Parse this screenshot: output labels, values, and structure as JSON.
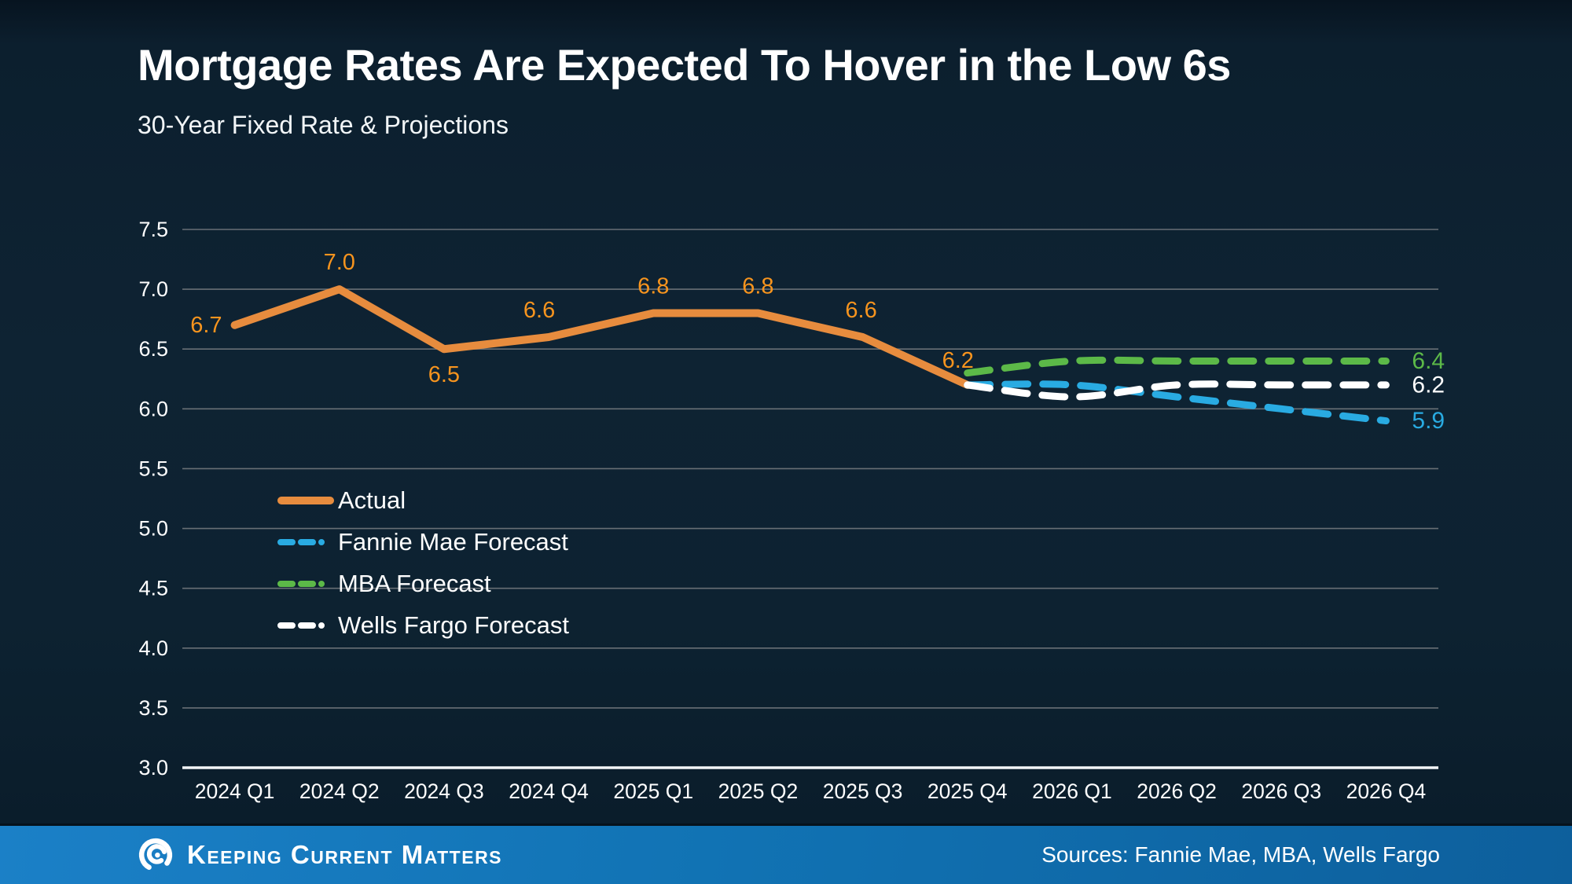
{
  "header": {
    "title": "Mortgage Rates Are Expected To Hover in the Low 6s",
    "subtitle": "30-Year Fixed Rate & Projections"
  },
  "chart_data": {
    "type": "line",
    "title": "Mortgage Rates Are Expected To Hover in the Low 6s",
    "subtitle": "30-Year Fixed Rate & Projections",
    "categories": [
      "2024 Q1",
      "2024 Q2",
      "2024 Q3",
      "2024 Q4",
      "2025 Q1",
      "2025 Q2",
      "2025 Q3",
      "2025 Q4",
      "2026 Q1",
      "2026 Q2",
      "2026 Q3",
      "2026 Q4"
    ],
    "y_ticks": [
      7.5,
      7.0,
      6.5,
      6.0,
      5.5,
      5.0,
      4.5,
      4.0,
      3.5,
      3.0
    ],
    "ylim": [
      3.0,
      7.5
    ],
    "grid": true,
    "legend_position": "inside-left",
    "colors": {
      "grid": "#686f75",
      "axis_baseline": "#f2f5f7",
      "tick_text": "#ffffff",
      "actual_label": "#F7941E"
    },
    "series": [
      {
        "name": "Actual",
        "style": "solid",
        "color": "#E78C3E",
        "label_color": "#F7941E",
        "values": [
          6.7,
          7.0,
          6.5,
          6.6,
          6.8,
          6.8,
          6.6,
          6.2,
          null,
          null,
          null,
          null
        ],
        "point_labels": [
          "6.7",
          "7.0",
          "6.5",
          "6.6",
          "6.8",
          "6.8",
          "6.6",
          "6.2"
        ]
      },
      {
        "name": "Fannie Mae Forecast",
        "style": "dashed",
        "color": "#29ABE2",
        "values": [
          null,
          null,
          null,
          null,
          null,
          null,
          null,
          6.2,
          6.2,
          6.1,
          6.0,
          5.9
        ],
        "end_label": "5.9"
      },
      {
        "name": "MBA Forecast",
        "style": "dashed",
        "color": "#5CB948",
        "values": [
          null,
          null,
          null,
          null,
          null,
          null,
          null,
          6.3,
          6.4,
          6.4,
          6.4,
          6.4
        ],
        "end_label": "6.4"
      },
      {
        "name": "Wells Fargo Forecast",
        "style": "dashed",
        "color": "#FFFFFF",
        "values": [
          null,
          null,
          null,
          null,
          null,
          null,
          null,
          6.2,
          6.1,
          6.2,
          6.2,
          6.2
        ],
        "end_label": "6.2"
      }
    ]
  },
  "footer": {
    "brand": "Keeping Current Matters",
    "sources": "Sources: Fannie Mae, MBA, Wells Fargo"
  }
}
